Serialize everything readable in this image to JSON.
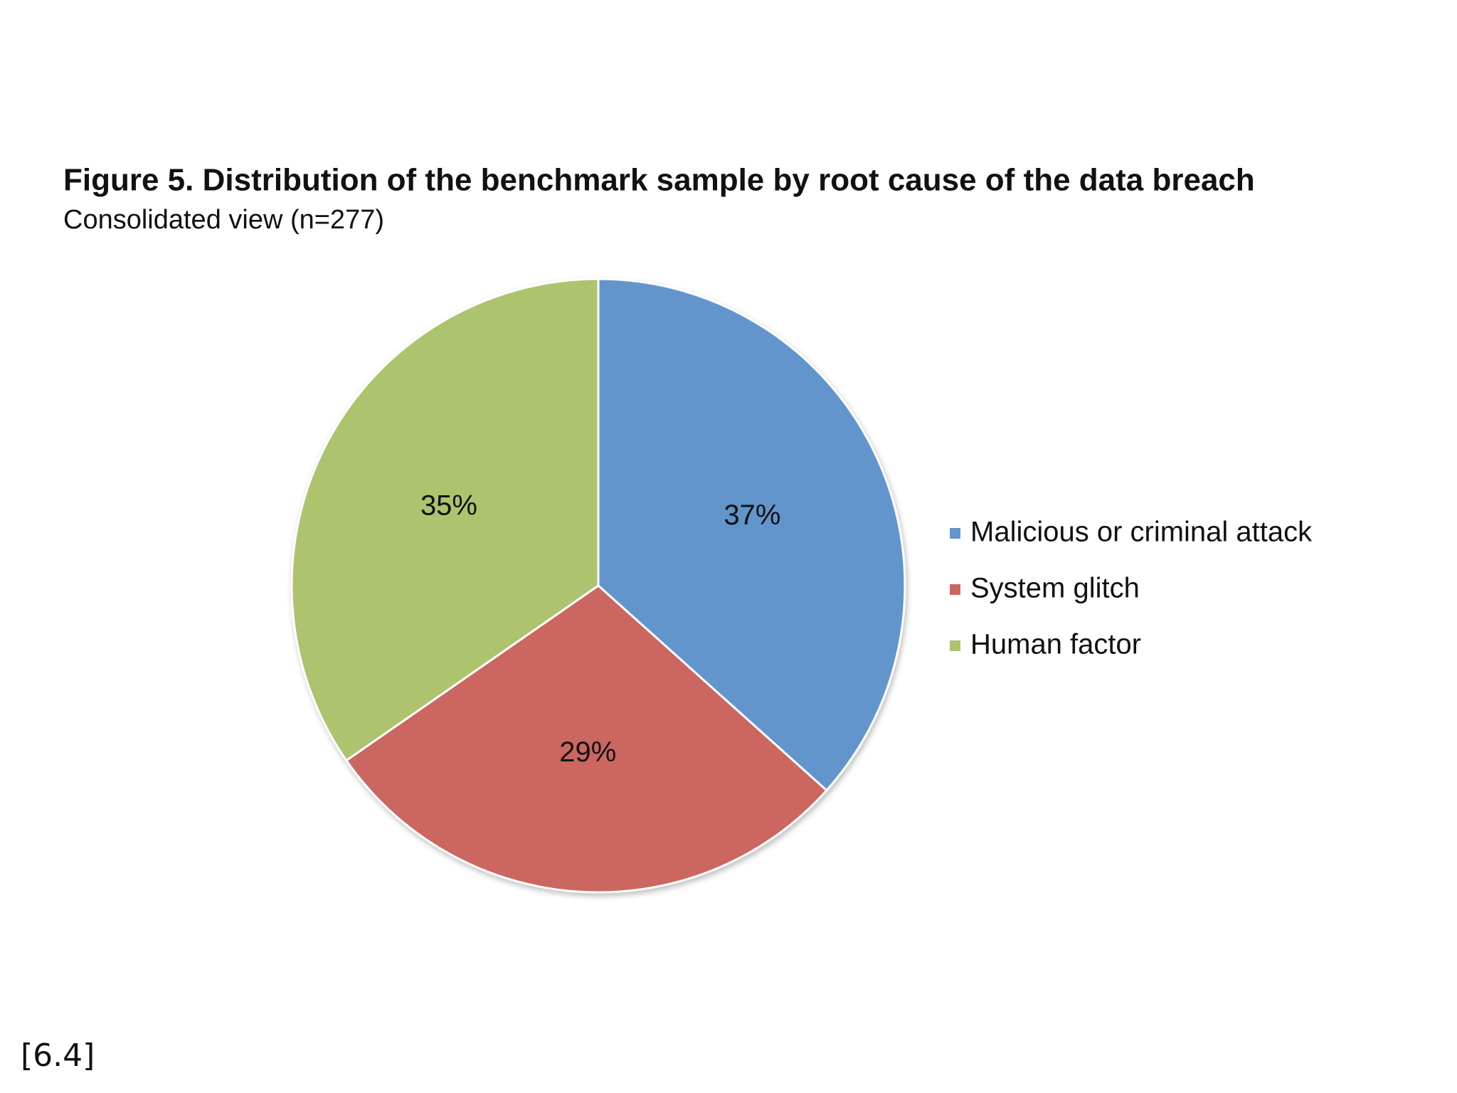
{
  "chart_data": {
    "type": "pie",
    "title": "Figure 5. Distribution of the benchmark sample by root cause of the data breach",
    "subtitle": "Consolidated view (n=277)",
    "categories": [
      "Malicious or criminal attack",
      "System glitch",
      "Human factor"
    ],
    "values": [
      37,
      29,
      35
    ],
    "value_labels": [
      "37%",
      "29%",
      "35%"
    ],
    "colors": [
      "#6495cd",
      "#cb6661",
      "#adc36e"
    ],
    "legend": "right",
    "annotation": "[6.4]"
  }
}
